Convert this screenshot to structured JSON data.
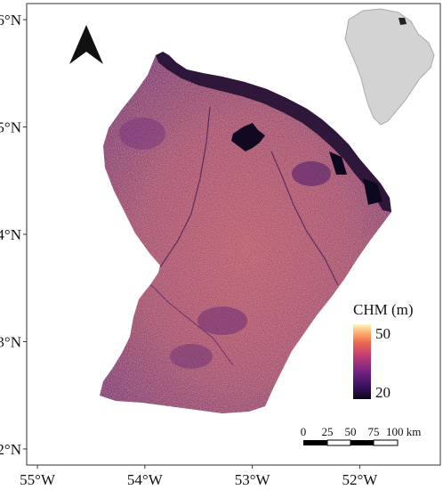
{
  "map": {
    "region": "French Guiana",
    "variable": "CHM",
    "lat_ticks": [
      {
        "value": 6,
        "label": "6°N"
      },
      {
        "value": 5,
        "label": "5°N"
      },
      {
        "value": 4,
        "label": "4°N"
      },
      {
        "value": 3,
        "label": "3°N"
      },
      {
        "value": 2,
        "label": "2°N"
      }
    ],
    "lon_ticks": [
      {
        "value": -55,
        "label": "55°W"
      },
      {
        "value": -54,
        "label": "54°W"
      },
      {
        "value": -53,
        "label": "53°W"
      },
      {
        "value": -52,
        "label": "52°W"
      }
    ],
    "lon_range": [
      -55.1,
      -51.25
    ],
    "lat_range": [
      1.85,
      6.15
    ]
  },
  "legend": {
    "title": "CHM (m)",
    "max_label": "50",
    "min_label": "20",
    "colors": [
      "#0b0820",
      "#3b1163",
      "#7a2482",
      "#c03c75",
      "#ee6a4f",
      "#fdb777",
      "#fdf3c4"
    ]
  },
  "scalebar": {
    "labels": [
      "0",
      "25",
      "50",
      "75",
      "100 km"
    ]
  },
  "north_arrow": {
    "icon": "north-arrow-icon"
  },
  "inset": {
    "description_icon": "south-america-locator-icon"
  }
}
